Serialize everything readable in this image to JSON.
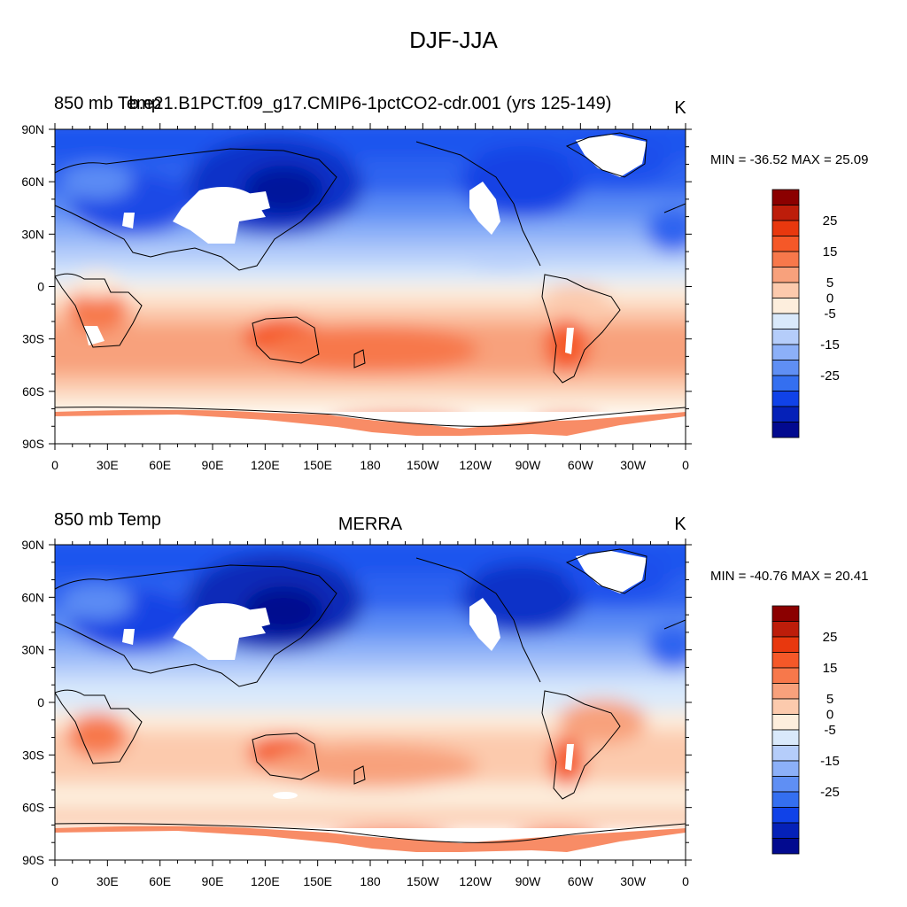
{
  "main_title": "DJF-JJA",
  "chart_data": [
    {
      "type": "heatmap",
      "left_title": "850 mb Temp",
      "center_title": "b.e21.B1PCT.f09_g17.CMIP6-1pctCO2-cdr.001 (yrs 125-149)",
      "units": "K",
      "stats": "MIN = -36.52 MAX =  25.09",
      "min": -36.52,
      "max": 25.09,
      "x_ticks": [
        "0",
        "30E",
        "60E",
        "90E",
        "120E",
        "150E",
        "180",
        "150W",
        "120W",
        "90W",
        "60W",
        "30W",
        "0"
      ],
      "y_ticks": [
        "90N",
        "60N",
        "30N",
        "0",
        "30S",
        "60S",
        "90S"
      ],
      "xlim": [
        0,
        360
      ],
      "ylim": [
        -90,
        90
      ],
      "projection": "cylindrical equidistant",
      "land_features": [
        "Greenland",
        "Tibetan Plateau",
        "Rocky Mountains",
        "Andes",
        "Antarctica",
        "Australia"
      ],
      "cold_core": "Siberia",
      "warm_regions": [
        "Australia",
        "Antarctica coast",
        "Southern Ocean"
      ]
    },
    {
      "type": "heatmap",
      "left_title": "850 mb Temp",
      "center_title": "MERRA",
      "units": "K",
      "stats": "MIN = -40.76 MAX =  20.41",
      "min": -40.76,
      "max": 20.41,
      "x_ticks": [
        "0",
        "30E",
        "60E",
        "90E",
        "120E",
        "150E",
        "180",
        "150W",
        "120W",
        "90W",
        "60W",
        "30W",
        "0"
      ],
      "y_ticks": [
        "90N",
        "60N",
        "30N",
        "0",
        "30S",
        "60S",
        "90S"
      ],
      "xlim": [
        0,
        360
      ],
      "ylim": [
        -90,
        90
      ],
      "projection": "cylindrical equidistant",
      "land_features": [
        "Greenland",
        "Tibetan Plateau",
        "Rocky Mountains",
        "Andes",
        "Antarctica",
        "Australia"
      ],
      "cold_core": "Siberia",
      "warm_regions": [
        "Australia",
        "Antarctica coast",
        "Southern Ocean"
      ]
    }
  ],
  "colorbar": {
    "levels": [
      -35,
      -30,
      -25,
      -20,
      -15,
      -10,
      -5,
      0,
      5,
      10,
      15,
      20,
      25,
      30
    ],
    "labels": [
      "25",
      "15",
      "5",
      "0",
      "-5",
      "-15",
      "-25"
    ],
    "label_values": [
      25,
      15,
      5,
      0,
      -5,
      -15,
      -25
    ],
    "colors": [
      "#8b0000",
      "#bd1d0a",
      "#e8380e",
      "#f55828",
      "#f7784b",
      "#f8a17c",
      "#fccaad",
      "#fdeedd",
      "#d9e9fb",
      "#b5cdfa",
      "#8cb0f8",
      "#5f8ff4",
      "#346ff0",
      "#1042e8",
      "#0521b8",
      "#020a8f"
    ]
  }
}
